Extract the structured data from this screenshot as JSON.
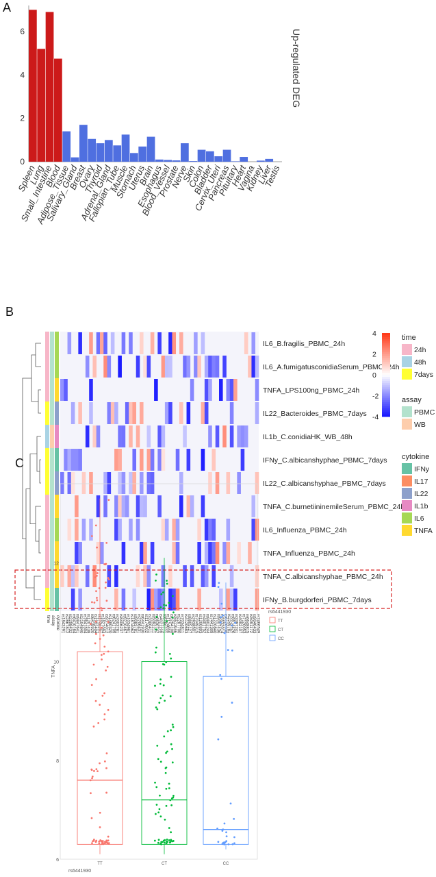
{
  "panels": {
    "a": "A",
    "b": "B",
    "c": "C"
  },
  "chart_data": [
    {
      "type": "bar",
      "ylabel": "Up-regulated DEG",
      "ylim": [
        0,
        7.2
      ],
      "yticks": [
        0,
        2,
        4,
        6
      ],
      "colors": {
        "highlight": "#cc1a1a",
        "normal": "#4f6fe0"
      },
      "categories": [
        "Spleen",
        "Lung",
        "Small_Intestine",
        "Blood",
        "Adipose_Tissue",
        "Salivary_Gland",
        "Breast",
        "Ovary",
        "Thyroid",
        "Adrenal_Gland",
        "Fallopian_Tube",
        "Muscle",
        "Stomach",
        "Uterus",
        "Brain",
        "Esophagus",
        "Blood_Vessel",
        "Prostate",
        "Nerve",
        "Skin",
        "Colon",
        "Bladder",
        "Cervix_Uteri",
        "Pancreas",
        "Pituitary",
        "Heart",
        "Vagina",
        "Kidney",
        "Liver",
        "Testis"
      ],
      "values": [
        7.0,
        5.2,
        6.9,
        4.75,
        1.4,
        0.2,
        1.7,
        1.05,
        0.85,
        1.0,
        0.75,
        1.25,
        0.4,
        0.7,
        1.15,
        0.1,
        0.08,
        0.06,
        0.85,
        0.03,
        0.55,
        0.48,
        0.25,
        0.55,
        0.02,
        0.22,
        0.0,
        0.05,
        0.13,
        0.0
      ],
      "highlight_count": 4
    },
    {
      "type": "heatmap",
      "scale": {
        "min": -4,
        "max": 4,
        "ticks": [
          4,
          2,
          0,
          -2,
          -4
        ],
        "low": "#1a1aff",
        "mid": "#ffffff",
        "high": "#ff3b1a"
      },
      "rows": [
        "IL6_B.fragilis_PBMC_24h",
        "IL6_A.fumigatusconidiaSerum_PBMC_24h",
        "TNFA_LPS100ng_PBMC_24h",
        "IL22_Bacteroides_PBMC_7days",
        "IL1b_C.conidiaHK_WB_48h",
        "IFNy_C.albicanshyphae_PBMC_7days",
        "IL22_C.albicanshyphae_PBMC_7days",
        "TNFA_C.burnetiininemileSerum_PBMC_24h",
        "IL6_Influenza_PBMC_24h",
        "TNFA_Influenza_PBMC_24h",
        "TNFA_C.albicanshyphae_PBMC_24h",
        "IFNy_B.burgdorferi_PBMC_7days"
      ],
      "annotation_labels": [
        "time",
        "assay",
        "cytokine"
      ],
      "row_annotations": {
        "time": [
          "24h",
          "24h",
          "24h",
          "7days",
          "48h",
          "7days",
          "7days",
          "24h",
          "24h",
          "24h",
          "24h",
          "7days"
        ],
        "assay": [
          "PBMC",
          "PBMC",
          "PBMC",
          "PBMC",
          "WB",
          "PBMC",
          "PBMC",
          "PBMC",
          "PBMC",
          "PBMC",
          "PBMC",
          "PBMC"
        ],
        "cytokine": [
          "IL6",
          "IL6",
          "TNFA",
          "IL22",
          "IL1b",
          "IFNy",
          "IL22",
          "TNFA",
          "IL6",
          "TNFA",
          "TNFA",
          "IFNy"
        ]
      },
      "legend": {
        "time": {
          "title": "time",
          "items": [
            {
              "label": "24h",
              "color": "#f7b6c8"
            },
            {
              "label": "48h",
              "color": "#a9d3e4"
            },
            {
              "label": "7days",
              "color": "#ffff33"
            }
          ]
        },
        "assay": {
          "title": "assay",
          "items": [
            {
              "label": "PBMC",
              "color": "#b3e2cd"
            },
            {
              "label": "WB",
              "color": "#fdcdac"
            }
          ]
        },
        "cytokine": {
          "title": "cytokine",
          "items": [
            {
              "label": "IFNy",
              "color": "#66c2a5"
            },
            {
              "label": "IL17",
              "color": "#fc8d62"
            },
            {
              "label": "IL22",
              "color": "#8da0cb"
            },
            {
              "label": "IL1b",
              "color": "#e78ac3"
            },
            {
              "label": "IL6",
              "color": "#a6d854"
            },
            {
              "label": "TNFA",
              "color": "#ffd92f"
            }
          ]
        }
      },
      "columns": [
        "rs1843291",
        "rs2867812",
        "rs2298432",
        "rs6410164",
        "rs9847641",
        "rs2104840",
        "rs7641504",
        "rs1207438",
        "rs6419920",
        "rs1982404",
        "rs1748201",
        "rs1827094",
        "rs9374012",
        "rs1480320",
        "rs6241709",
        "rs2003781",
        "rs8406237",
        "rs9210467",
        "rs1034961",
        "rs1874062",
        "rs9083781",
        "rs2206431",
        "rs6441930",
        "rs1174002",
        "rs3300411",
        "rs5092211",
        "rs6630742",
        "rs4021198",
        "rs6480771",
        "rs1124698",
        "rs6294108",
        "rs5511946",
        "rs2287700",
        "rs7034811",
        "rs4120683",
        "rs8805127",
        "rs2938501",
        "rs7049315",
        "rs1200893",
        "rs4401752",
        "rs8802244",
        "rs7441309",
        "rs1220840",
        "rs9007436",
        "rs5532014",
        "rs6120938",
        "rs2249781",
        "rs8814426",
        "rs3397241",
        "rs4092107",
        "rs7120053",
        "rs6648815",
        "rs5091172",
        "rs9040433",
        "rs7466549"
      ]
    },
    {
      "type": "box",
      "xlabel": "rs6441930",
      "ylabel": "TNFA",
      "ylim": [
        6.0,
        13.6
      ],
      "yticks": [
        6,
        8,
        10,
        12
      ],
      "legend_title": "rs6441930",
      "categories": [
        "TT",
        "CT",
        "CC"
      ],
      "colors": [
        "#f8766d",
        "#00ba38",
        "#619cff"
      ],
      "boxes": [
        {
          "name": "TT",
          "min": 6.1,
          "q1": 6.3,
          "median": 7.6,
          "q3": 10.2,
          "max": 13.3
        },
        {
          "name": "CT",
          "min": 6.1,
          "q1": 6.3,
          "median": 7.2,
          "q3": 10.0,
          "max": 12.1
        },
        {
          "name": "CC",
          "min": 6.2,
          "q1": 6.3,
          "median": 6.6,
          "q3": 9.7,
          "max": 11.6
        }
      ]
    }
  ]
}
